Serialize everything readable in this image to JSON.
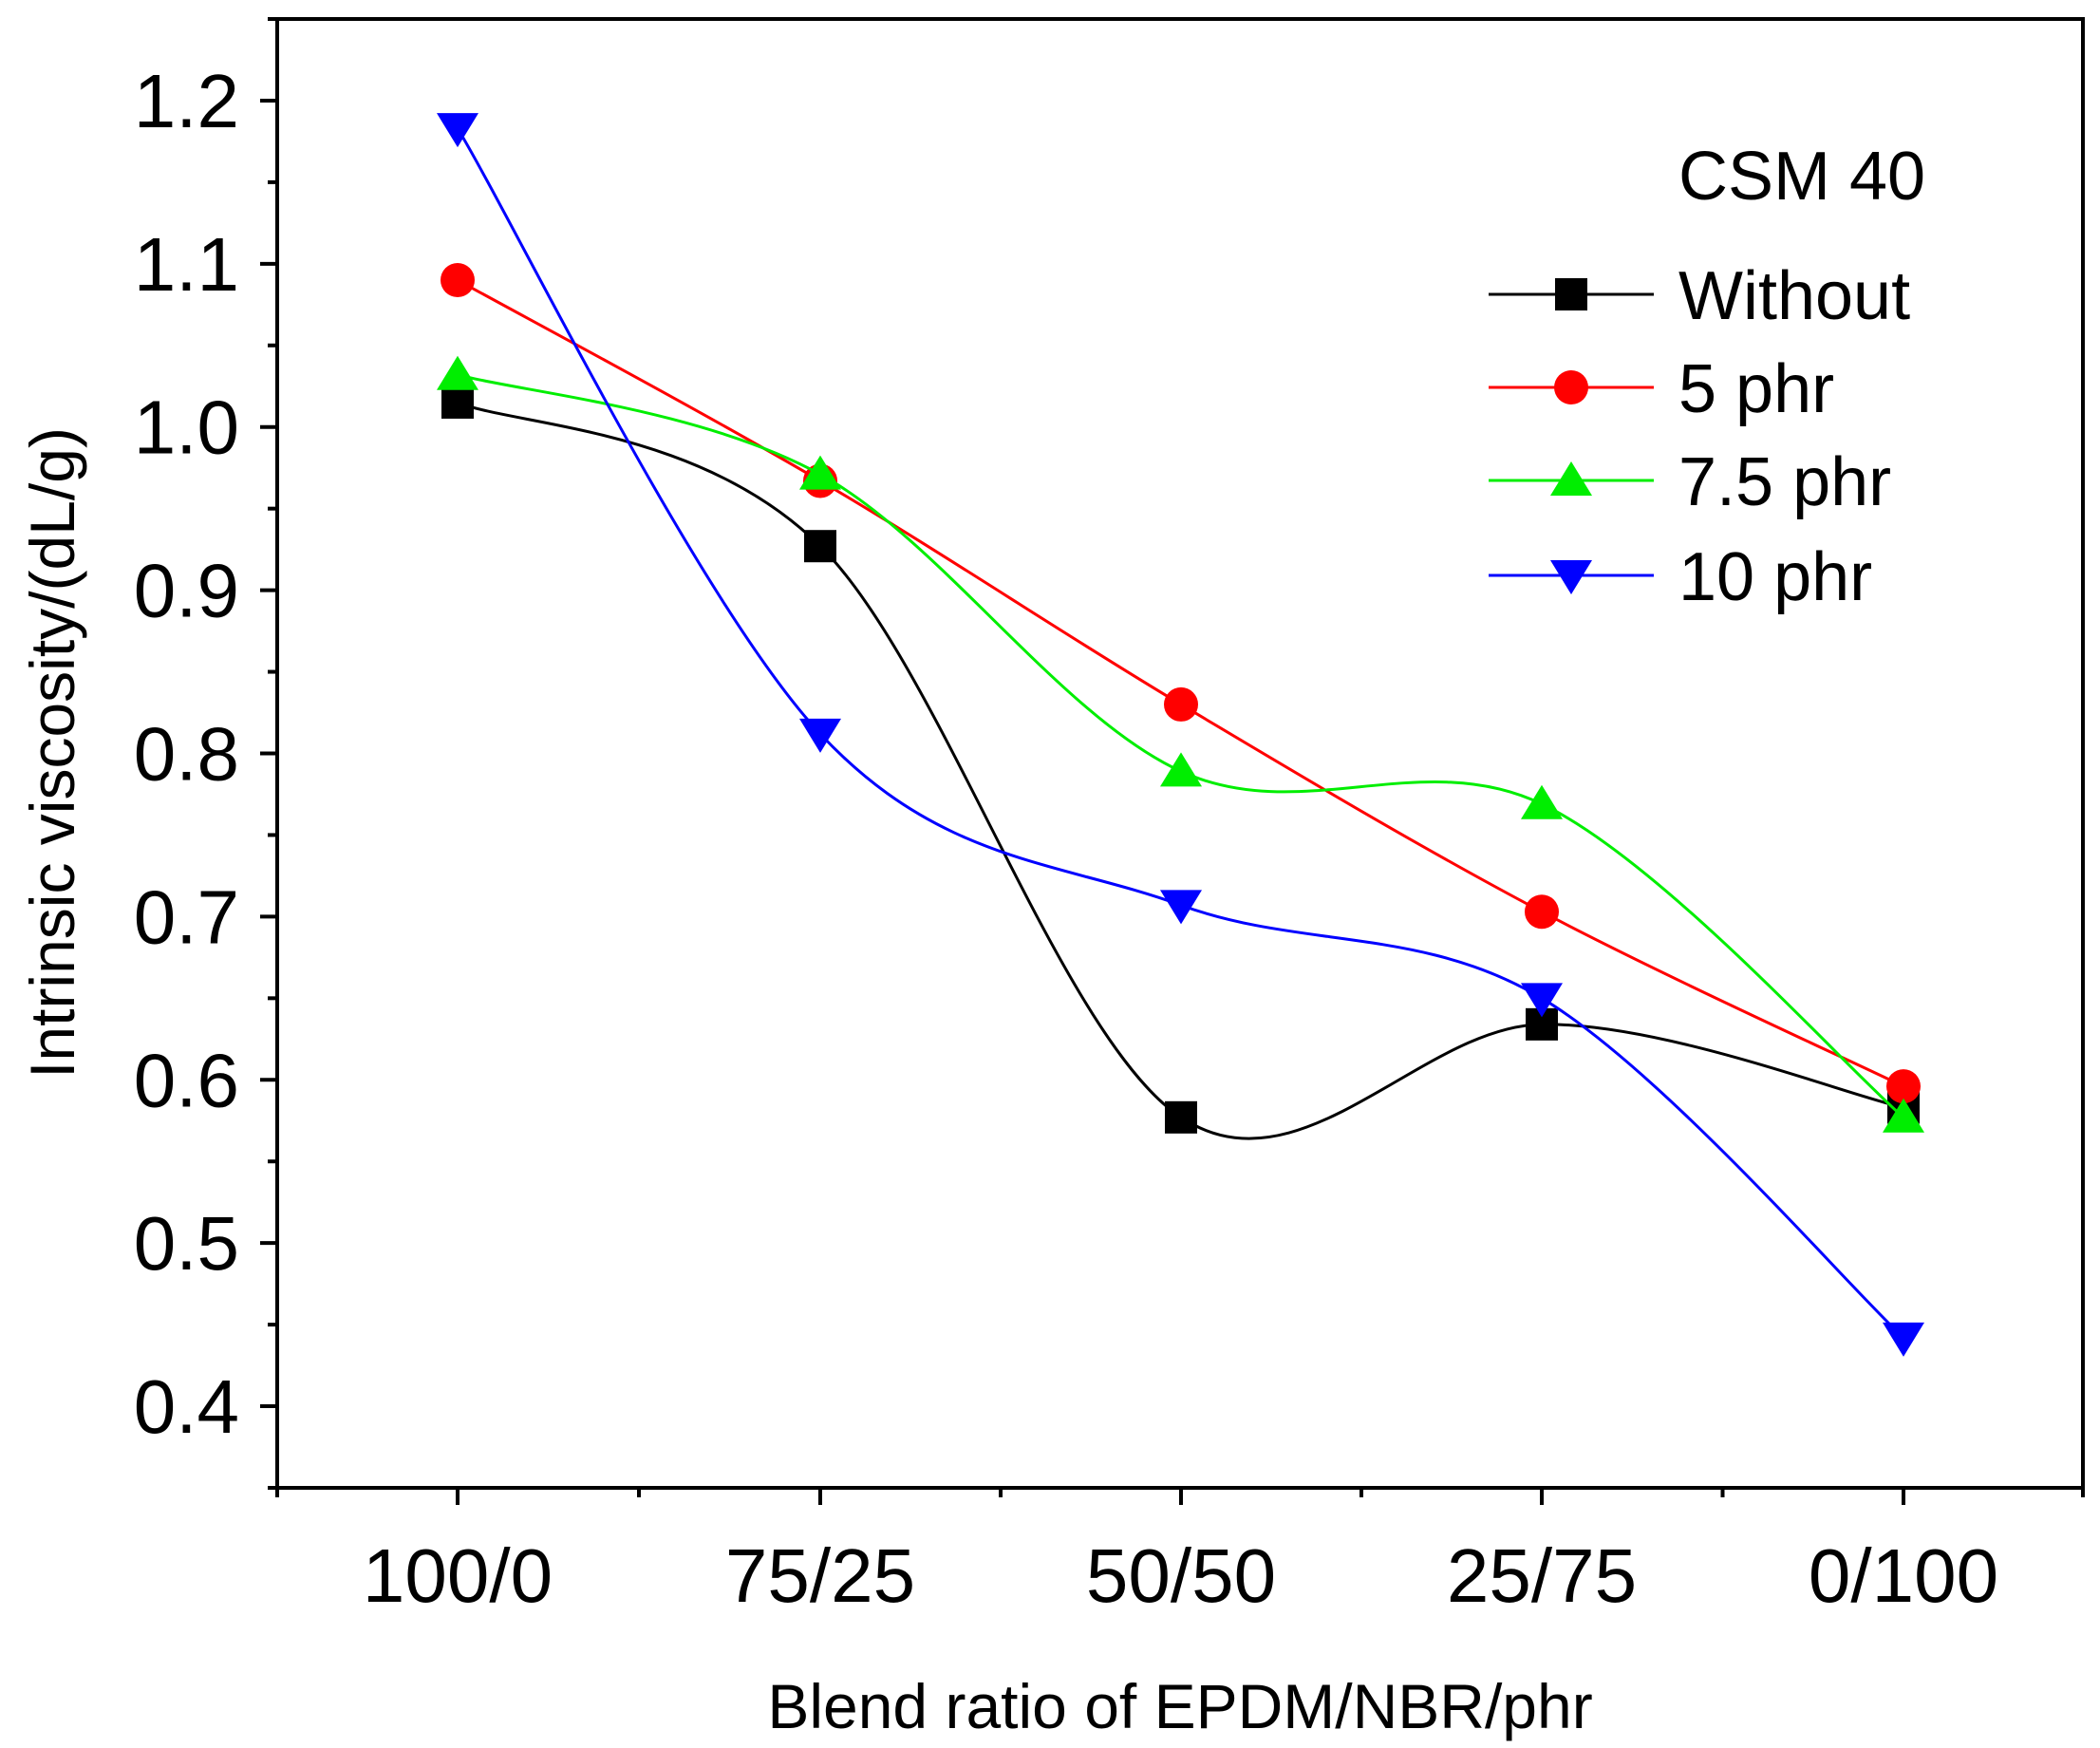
{
  "chart_data": {
    "type": "line",
    "title": "",
    "annotation": "CSM 40",
    "xlabel": "Blend ratio of EPDM/NBR/phr",
    "ylabel": "Intrinsic viscosity/(dL/g)",
    "categories": [
      "100/0",
      "75/25",
      "50/50",
      "25/75",
      "0/100"
    ],
    "ylim": [
      0.35,
      1.25
    ],
    "yticks": [
      0.4,
      0.5,
      0.6,
      0.7,
      0.8,
      0.9,
      1.0,
      1.1,
      1.2
    ],
    "ytick_labels": [
      "0.4",
      "0.5",
      "0.6",
      "0.7",
      "0.8",
      "0.9",
      "1.0",
      "1.1",
      "1.2"
    ],
    "legend_position": "top-right",
    "grid": false,
    "series": [
      {
        "name": "Without",
        "color": "#000000",
        "marker": "square",
        "values": [
          1.015,
          0.927,
          0.577,
          0.634,
          0.583
        ]
      },
      {
        "name": "5 phr",
        "color": "#ff0000",
        "marker": "circle",
        "values": [
          1.09,
          0.967,
          0.83,
          0.703,
          0.596
        ]
      },
      {
        "name": "7.5 phr",
        "color": "#00ee00",
        "marker": "triangle-up",
        "values": [
          1.032,
          0.971,
          0.789,
          0.769,
          0.577
        ]
      },
      {
        "name": "10 phr",
        "color": "#0000ff",
        "marker": "triangle-down",
        "values": [
          1.183,
          0.812,
          0.707,
          0.65,
          0.442
        ]
      }
    ]
  }
}
